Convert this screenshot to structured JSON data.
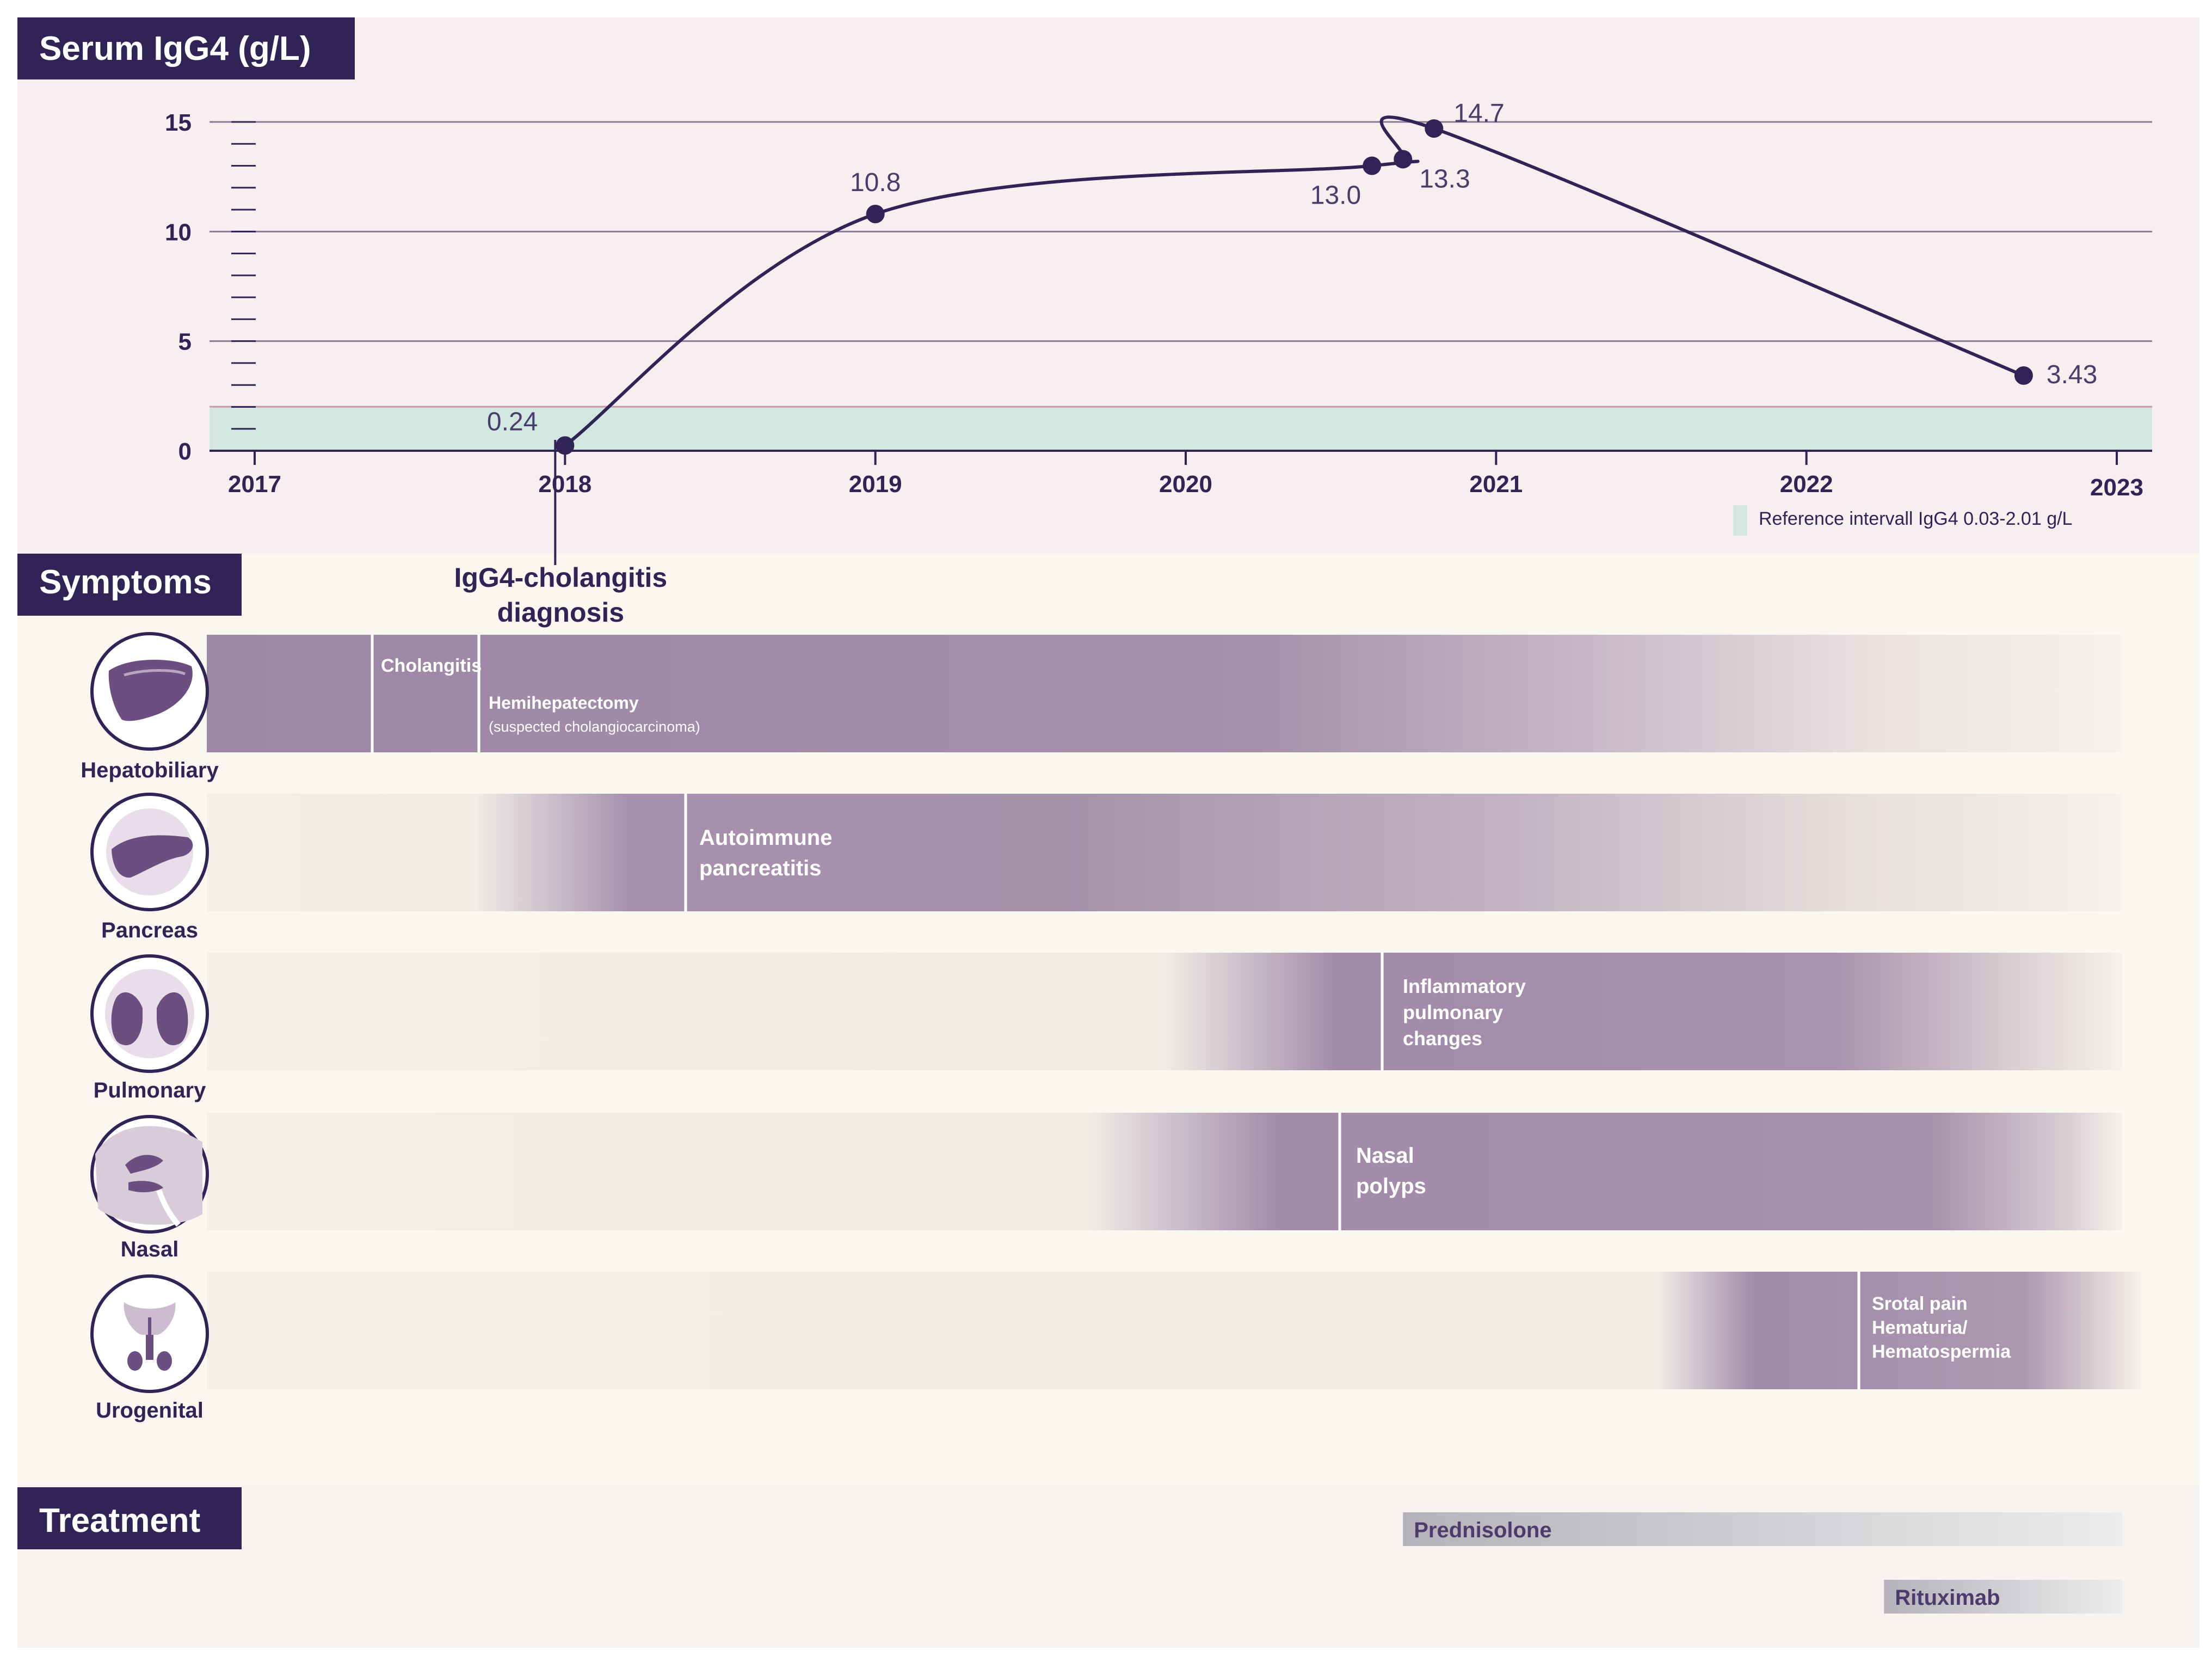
{
  "colors": {
    "accent": "#2f2455",
    "chart_bg": "#f7eef0",
    "symptom_bg": "#faf7f0",
    "bar": "#9d87a5",
    "bar_pale": "#f0ede6",
    "reference_band": "#d2e7df",
    "treatment_bar": "#b8b6bd"
  },
  "sections": {
    "chart_title": "Serum IgG4 (g/L)",
    "symptoms_title": "Symptoms",
    "treatment_title": "Treatment"
  },
  "chart_data": {
    "type": "line",
    "title": "Serum IgG4 (g/L)",
    "xlabel": "",
    "ylabel": "Serum IgG4 (g/L)",
    "x_ticks": [
      "2017",
      "2018",
      "2019",
      "2020",
      "2021",
      "2022",
      "2023"
    ],
    "y_ticks": [
      "0",
      "5",
      "10",
      "15"
    ],
    "xlim": [
      2017,
      2023
    ],
    "ylim": [
      0,
      15
    ],
    "grid": true,
    "series": [
      {
        "name": "Serum IgG4",
        "points": [
          {
            "x": 2018.0,
            "y": 0.24,
            "label": "0.24"
          },
          {
            "x": 2019.0,
            "y": 10.8,
            "label": "10.8"
          },
          {
            "x": 2020.6,
            "y": 13.0,
            "label": "13.0"
          },
          {
            "x": 2020.7,
            "y": 13.3,
            "label": "13.3"
          },
          {
            "x": 2020.8,
            "y": 14.7,
            "label": "14.7"
          },
          {
            "x": 2022.7,
            "y": 3.43,
            "label": "3.43"
          }
        ]
      }
    ],
    "reference_interval": {
      "low": 0.03,
      "high": 2.01,
      "label": "Reference intervall IgG4 0.03-2.01 g/L"
    },
    "annotation": {
      "x": 2018.0,
      "lines": [
        "IgG4-cholangitis",
        "diagnosis"
      ]
    }
  },
  "symptoms": [
    {
      "organ": "Hepatobiliary",
      "icon": "liver-icon",
      "events": [
        {
          "start": 2017.4,
          "lines": [
            "Cholangitis"
          ]
        },
        {
          "start": 2017.75,
          "lines": [
            "Hemihepatectomy",
            "(suspected cholangiocarcinoma)"
          ]
        }
      ]
    },
    {
      "organ": "Pancreas",
      "icon": "pancreas-icon",
      "events": [
        {
          "start": 2018.4,
          "lines": [
            "Autoimmune",
            "pancreatitis"
          ]
        }
      ]
    },
    {
      "organ": "Pulmonary",
      "icon": "lungs-icon",
      "events": [
        {
          "start": 2020.6,
          "lines": [
            "Inflammatory",
            "pulmonary",
            "changes"
          ]
        }
      ]
    },
    {
      "organ": "Nasal",
      "icon": "nasal-icon",
      "events": [
        {
          "start": 2020.45,
          "lines": [
            "Nasal",
            "polyps"
          ]
        }
      ]
    },
    {
      "organ": "Urogenital",
      "icon": "urogenital-icon",
      "events": [
        {
          "start": 2022.2,
          "lines": [
            "Srotal pain",
            "Hematuria/",
            "Hematospermia"
          ]
        }
      ]
    }
  ],
  "treatments": [
    {
      "name": "Prednisolone",
      "start": 2020.7,
      "end": 2023.0
    },
    {
      "name": "Rituximab",
      "start": 2022.25,
      "end": 2023.0
    }
  ]
}
